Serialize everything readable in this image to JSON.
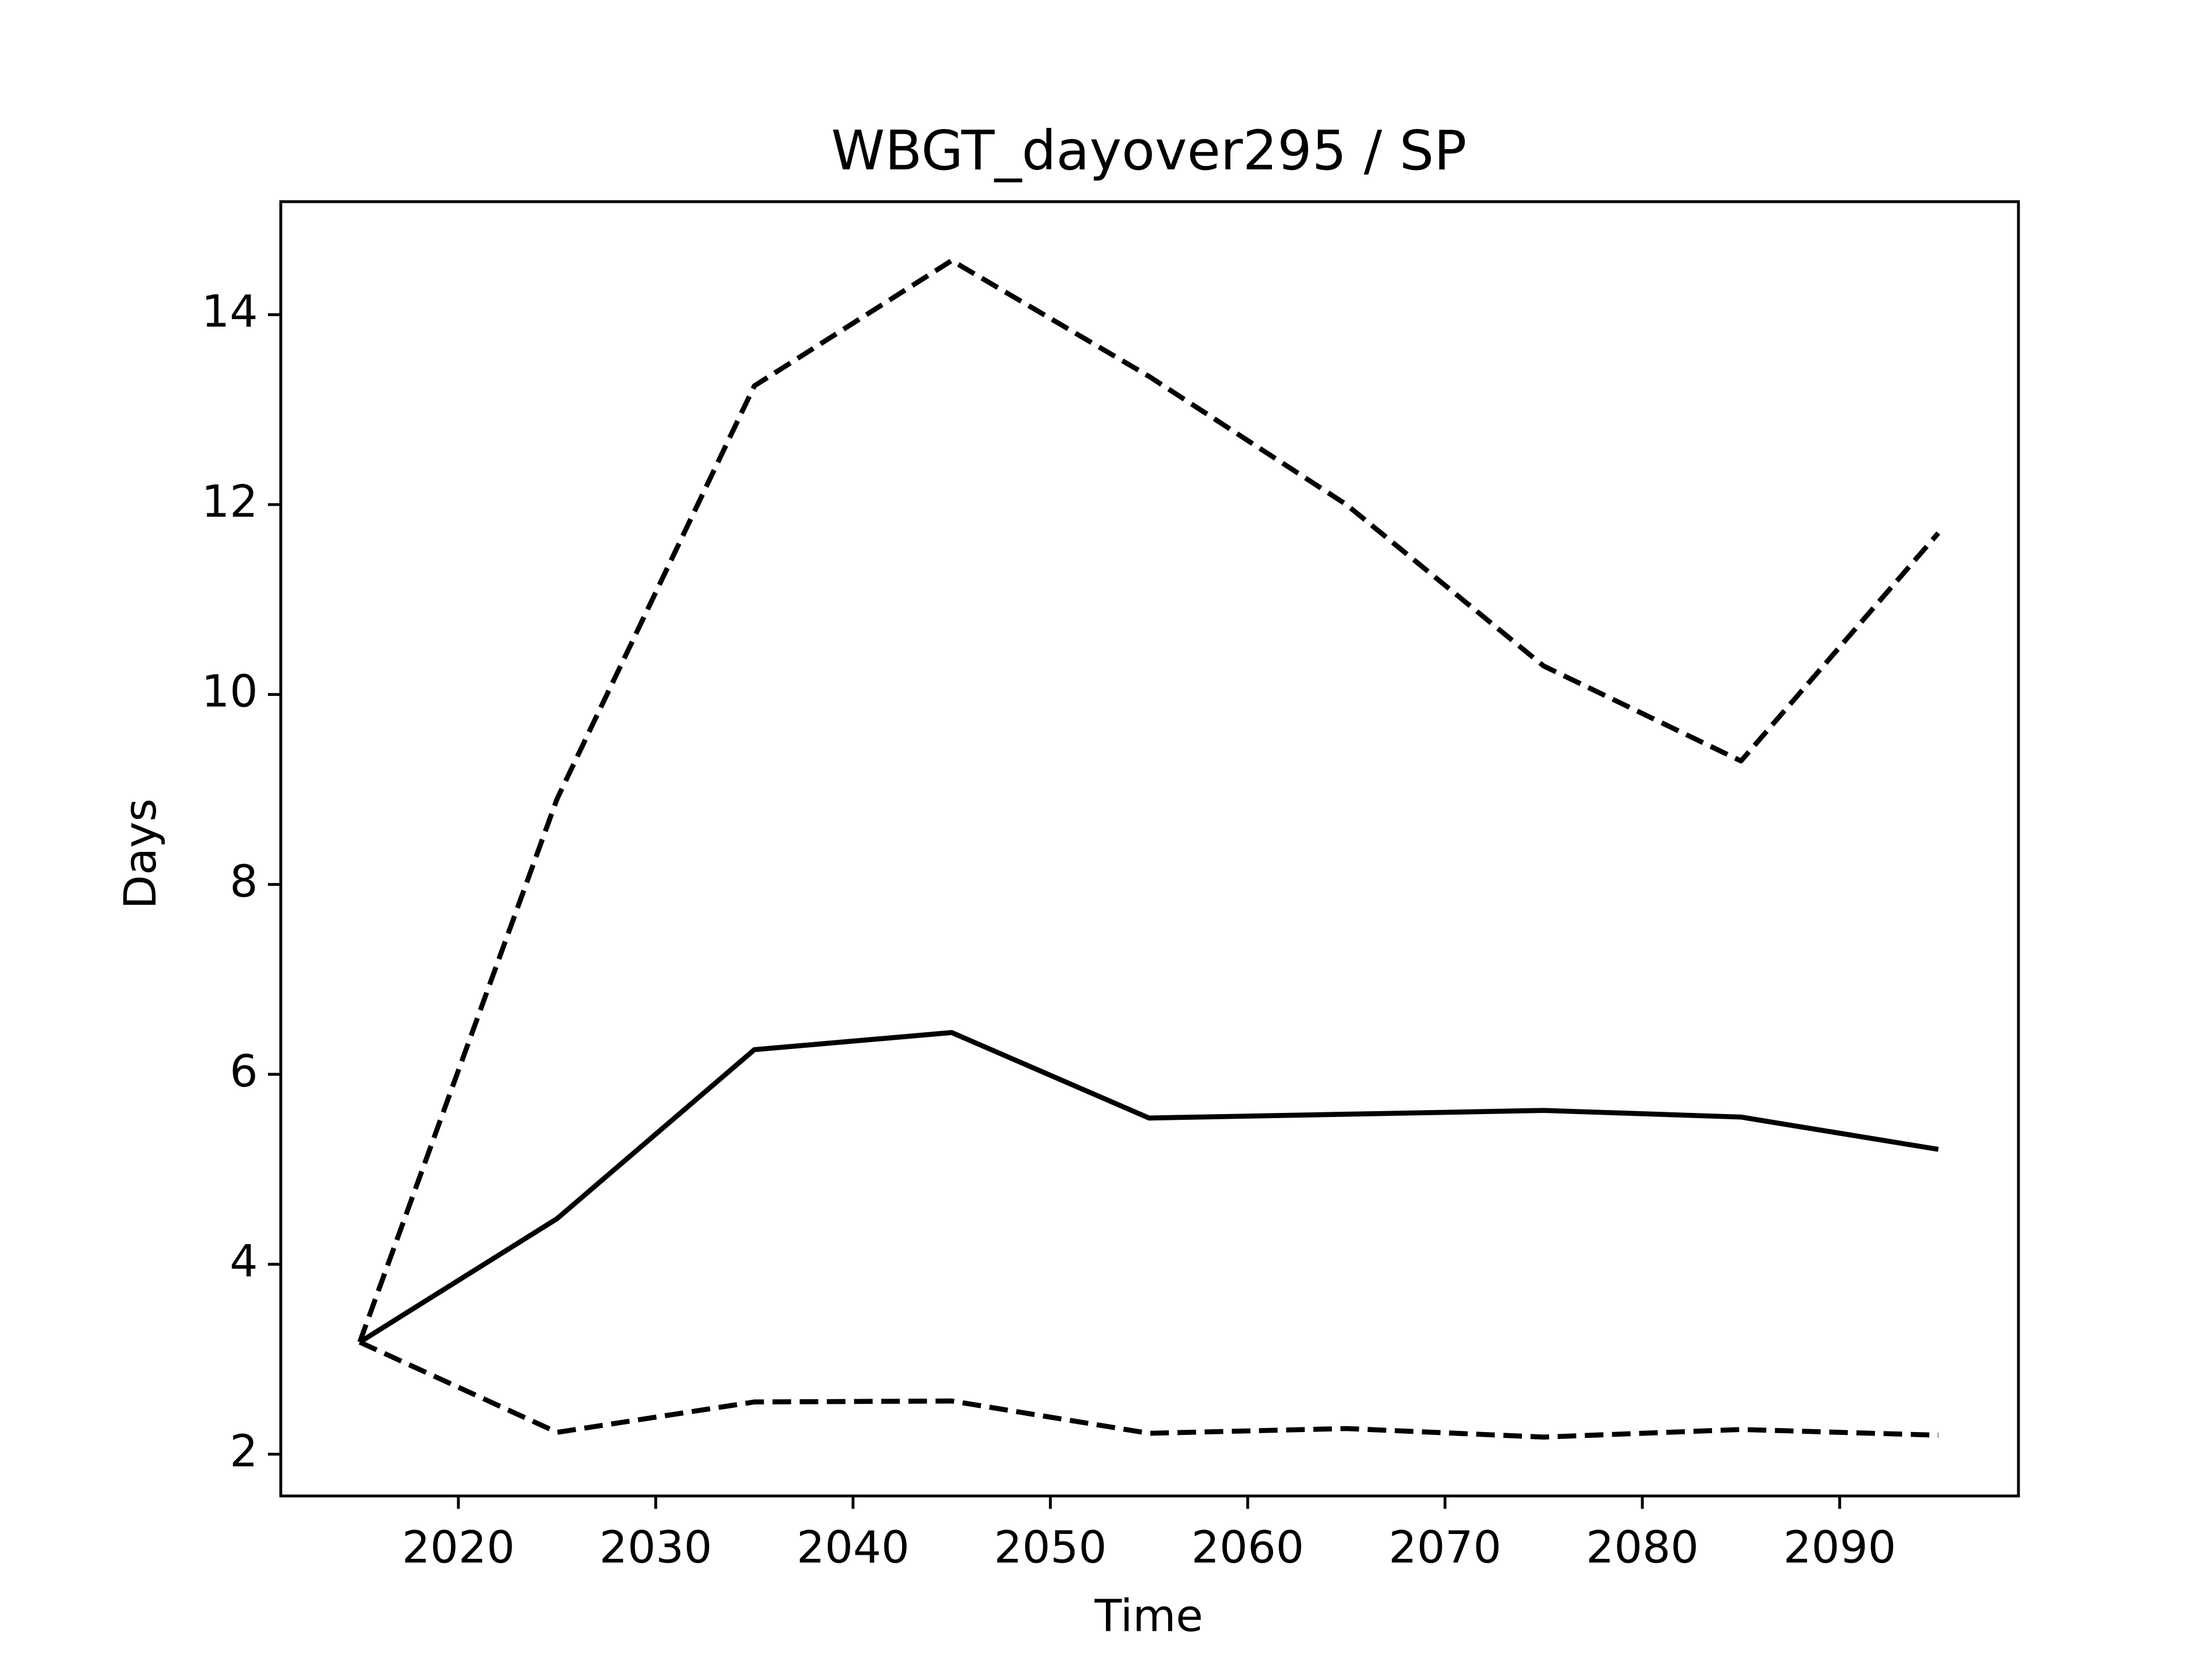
{
  "chart_data": {
    "type": "line",
    "title": "WBGT_dayover295 / SP",
    "x_label": "Time",
    "y_label": "Days",
    "x": [
      2015,
      2025,
      2035,
      2045,
      2055,
      2065,
      2075,
      2085,
      2095
    ],
    "series": [
      {
        "color": "#000000",
        "style": "solid",
        "values": [
          3.18,
          4.48,
          6.26,
          6.44,
          5.54,
          5.58,
          5.62,
          5.55,
          5.21
        ]
      },
      {
        "color": "#000000",
        "style": "dashed",
        "values": [
          3.18,
          8.9,
          13.25,
          14.57,
          13.35,
          12.0,
          10.3,
          9.3,
          11.7
        ]
      },
      {
        "color": "#000000",
        "style": "dashed",
        "values": [
          3.18,
          2.23,
          2.55,
          2.56,
          2.22,
          2.27,
          2.18,
          2.26,
          2.2
        ]
      }
    ],
    "xlim": [
      2011,
      2099.06
    ],
    "xticks": [
      2020,
      2030,
      2040,
      2050,
      2060,
      2070,
      2080,
      2090
    ],
    "ylim": [
      1.56,
      15.19
    ],
    "yticks": [
      2,
      4,
      6,
      8,
      10,
      12,
      14
    ],
    "grid": false
  }
}
